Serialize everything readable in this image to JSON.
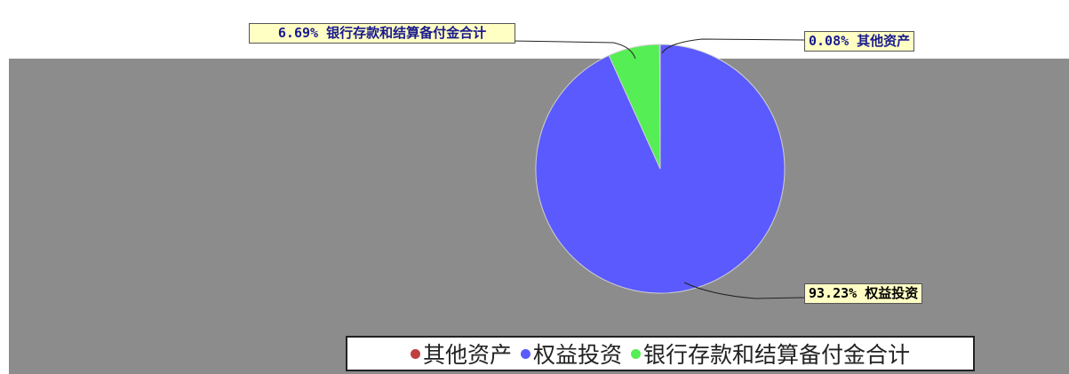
{
  "chart_data": {
    "type": "pie",
    "title": "",
    "series": [
      {
        "name": "其他资产",
        "value": 0.08,
        "color": "#c04040"
      },
      {
        "name": "权益投资",
        "value": 93.23,
        "color": "#5a5aff"
      },
      {
        "name": "银行存款和结算备付金合计",
        "value": 6.69,
        "color": "#55ee55"
      }
    ],
    "labels": [
      {
        "text": "0.08% 其他资产"
      },
      {
        "text": "93.23% 权益投资"
      },
      {
        "text": "6.69% 银行存款和结算备付金合计"
      }
    ],
    "legend_position": "bottom"
  }
}
